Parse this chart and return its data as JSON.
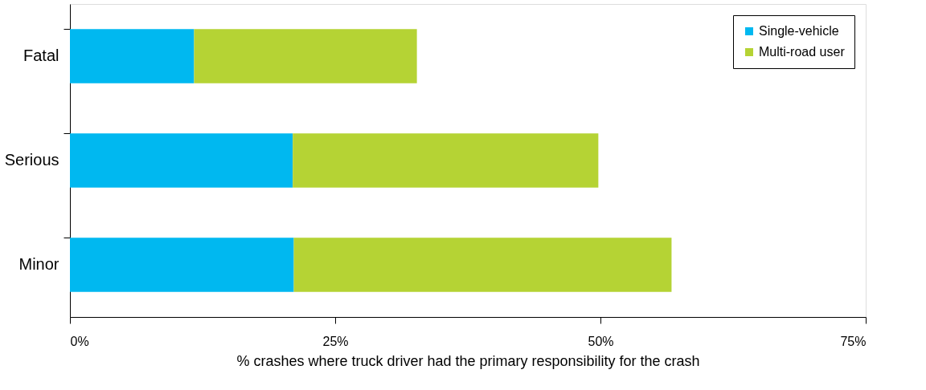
{
  "chart_data": {
    "type": "bar",
    "orientation": "horizontal",
    "stacked": true,
    "categories": [
      "Fatal",
      "Serious",
      "Minor"
    ],
    "series": [
      {
        "name": "Single-vehicle",
        "color": "#00b8f0",
        "values": [
          11.7,
          21.0,
          21.1
        ]
      },
      {
        "name": "Multi-road user",
        "color": "#b5d334",
        "values": [
          21.0,
          28.8,
          35.6
        ]
      }
    ],
    "xlabel": "% crashes where truck driver  had the primary responsibility for the crash",
    "xlim": [
      0,
      75
    ],
    "xticks": [
      {
        "value": 0,
        "label": "0%"
      },
      {
        "value": 25,
        "label": "25%"
      },
      {
        "value": 50,
        "label": "50%"
      },
      {
        "value": 75,
        "label": "75%"
      }
    ],
    "grid": false,
    "legend": "top right"
  }
}
